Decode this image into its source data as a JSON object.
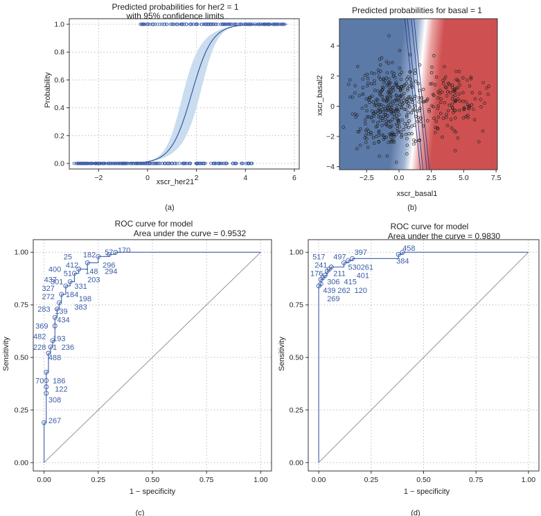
{
  "chart_data": [
    {
      "id": "a",
      "type": "line",
      "panel_label": "(a)",
      "title": "Predicted probabilities for her2 = 1",
      "subtitle": "with 95% confidence limits",
      "xlabel": "xscr_her21",
      "ylabel": "Probability",
      "xlim": [
        -3.2,
        6.2
      ],
      "ylim": [
        -0.04,
        1.04
      ],
      "xticks": [
        -2,
        0,
        2,
        4,
        6
      ],
      "yticks": [
        0.0,
        0.2,
        0.4,
        0.6,
        0.8,
        1.0
      ],
      "xtick_labels": [
        "−2",
        "0",
        "2",
        "4",
        "6"
      ],
      "ytick_labels": [
        "0.0",
        "0.2",
        "0.4",
        "0.6",
        "0.8",
        "1.0"
      ],
      "grid": true,
      "colors": {
        "line": "#2f4f8f",
        "band": "#c9dcf0",
        "points": "#3a5ca8"
      },
      "logistic": {
        "midpoint": 1.8,
        "slope": 2.4,
        "band_halfwidth": 0.12
      },
      "observed_zero_x": [
        -3.0,
        -2.8,
        -2.5,
        -2.3,
        -2.1,
        -1.9,
        -1.8,
        -1.6,
        -1.5,
        -1.3,
        -1.2,
        -1.1,
        -1.0,
        -0.9,
        -0.8,
        -0.7,
        -0.6,
        -0.5,
        -0.4,
        -0.3,
        -0.2,
        -0.1,
        0.0,
        0.1,
        0.2,
        0.3,
        0.4,
        0.5,
        0.6,
        0.7,
        0.8,
        0.9,
        1.0,
        1.1,
        1.3,
        1.5,
        1.7,
        2.0,
        2.3,
        2.7,
        3.2,
        3.6,
        4.1
      ],
      "observed_one_x": [
        -0.2,
        0.1,
        0.4,
        0.7,
        1.0,
        1.2,
        1.4,
        1.6,
        1.8,
        2.0,
        2.2,
        2.4,
        2.6,
        2.8,
        3.0,
        3.2,
        3.4,
        3.6,
        3.8,
        4.0,
        4.2,
        4.4,
        4.6,
        4.8,
        5.0,
        5.2,
        5.6
      ]
    },
    {
      "id": "b",
      "type": "heatmap",
      "panel_label": "(b)",
      "title": "Predicted probabilities for basal = 1",
      "xlabel": "xscr_basal1",
      "ylabel": "xscr_basal2",
      "xlim": [
        -4.6,
        7.6
      ],
      "ylim": [
        -4.2,
        5.8
      ],
      "xticks": [
        -2.5,
        0.0,
        2.5,
        5.0,
        7.5
      ],
      "yticks": [
        -4,
        -2,
        0,
        2,
        4
      ],
      "xtick_labels": [
        "−2.5",
        "0.0",
        "2.5",
        "5.0",
        "7.5"
      ],
      "ytick_labels": [
        "−4",
        "−2",
        "0",
        "2",
        "4"
      ],
      "colors": {
        "low": "#5c7aa8",
        "high": "#cf5050",
        "mid": "#ffffff",
        "contour": "#1f3f8f",
        "points": "#222222"
      },
      "boundary": {
        "x_at_y0": 1.5,
        "x_per_y": -0.12
      },
      "basal0_cluster": {
        "center": [
          -0.5,
          0.0
        ],
        "spread": [
          1.6,
          1.6
        ],
        "n": 380
      },
      "basal1_cluster": {
        "center": [
          4.4,
          0.3
        ],
        "spread": [
          1.3,
          1.3
        ],
        "n": 120
      }
    },
    {
      "id": "c",
      "type": "line",
      "panel_label": "(c)",
      "title": "ROC curve for model",
      "subtitle": "Area under the curve = 0.9532",
      "xlabel": "1 − specificity",
      "ylabel": "Sensitivity",
      "xlim": [
        -0.05,
        1.05
      ],
      "ylim": [
        -0.04,
        1.06
      ],
      "xticks": [
        0.0,
        0.25,
        0.5,
        0.75,
        1.0
      ],
      "yticks": [
        0.0,
        0.25,
        0.5,
        0.75,
        1.0
      ],
      "xtick_labels": [
        "0.00",
        "0.25",
        "0.50",
        "0.75",
        "1.00"
      ],
      "ytick_labels": [
        "0.00",
        "0.25",
        "0.50",
        "0.75",
        "1.00"
      ],
      "grid": true,
      "colors": {
        "curve": "#3a5ca8",
        "diagonal": "#888888",
        "labels": "#3a5ca8"
      },
      "roc_points": [
        [
          0.0,
          0.0
        ],
        [
          0.0,
          0.19
        ],
        [
          0.01,
          0.33
        ],
        [
          0.01,
          0.36
        ],
        [
          0.01,
          0.39
        ],
        [
          0.01,
          0.43
        ],
        [
          0.02,
          0.52
        ],
        [
          0.03,
          0.55
        ],
        [
          0.04,
          0.58
        ],
        [
          0.05,
          0.65
        ],
        [
          0.05,
          0.69
        ],
        [
          0.06,
          0.73
        ],
        [
          0.07,
          0.76
        ],
        [
          0.08,
          0.8
        ],
        [
          0.1,
          0.84
        ],
        [
          0.12,
          0.86
        ],
        [
          0.14,
          0.9
        ],
        [
          0.16,
          0.92
        ],
        [
          0.2,
          0.95
        ],
        [
          0.25,
          0.98
        ],
        [
          0.3,
          0.99
        ],
        [
          0.33,
          1.0
        ],
        [
          1.0,
          1.0
        ]
      ],
      "observation_labels": [
        {
          "text": "267",
          "x": 0.02,
          "y": 0.2
        },
        {
          "text": "308",
          "x": 0.02,
          "y": 0.3
        },
        {
          "text": "122",
          "x": 0.05,
          "y": 0.35
        },
        {
          "text": "186",
          "x": 0.04,
          "y": 0.39
        },
        {
          "text": "70",
          "x": -0.04,
          "y": 0.39
        },
        {
          "text": "488",
          "x": 0.02,
          "y": 0.5
        },
        {
          "text": "228",
          "x": -0.05,
          "y": 0.55
        },
        {
          "text": "1",
          "x": 0.04,
          "y": 0.55
        },
        {
          "text": "236",
          "x": 0.08,
          "y": 0.55
        },
        {
          "text": "193",
          "x": 0.04,
          "y": 0.59
        },
        {
          "text": "482",
          "x": -0.05,
          "y": 0.6
        },
        {
          "text": "369",
          "x": -0.04,
          "y": 0.65
        },
        {
          "text": "434",
          "x": 0.06,
          "y": 0.68
        },
        {
          "text": "139",
          "x": 0.05,
          "y": 0.72
        },
        {
          "text": "283",
          "x": -0.03,
          "y": 0.73
        },
        {
          "text": "383",
          "x": 0.14,
          "y": 0.74
        },
        {
          "text": "272",
          "x": -0.01,
          "y": 0.79
        },
        {
          "text": "198",
          "x": 0.16,
          "y": 0.78
        },
        {
          "text": "184",
          "x": 0.1,
          "y": 0.8
        },
        {
          "text": "327",
          "x": -0.01,
          "y": 0.83
        },
        {
          "text": "331",
          "x": 0.14,
          "y": 0.84
        },
        {
          "text": "301",
          "x": 0.03,
          "y": 0.86
        },
        {
          "text": "203",
          "x": 0.2,
          "y": 0.87
        },
        {
          "text": "437",
          "x": 0.0,
          "y": 0.87
        },
        {
          "text": "51",
          "x": 0.09,
          "y": 0.9
        },
        {
          "text": "148",
          "x": 0.19,
          "y": 0.91
        },
        {
          "text": "294",
          "x": 0.28,
          "y": 0.91
        },
        {
          "text": "400",
          "x": 0.02,
          "y": 0.92
        },
        {
          "text": "412",
          "x": 0.1,
          "y": 0.94
        },
        {
          "text": "296",
          "x": 0.27,
          "y": 0.94
        },
        {
          "text": "25",
          "x": 0.09,
          "y": 0.98
        },
        {
          "text": "182",
          "x": 0.18,
          "y": 0.99
        },
        {
          "text": "57",
          "x": 0.28,
          "y": 1.0
        },
        {
          "text": "170",
          "x": 0.34,
          "y": 1.01
        }
      ]
    },
    {
      "id": "d",
      "type": "line",
      "panel_label": "(d)",
      "title": "ROC curve for model",
      "subtitle": "Area under the curve = 0.9830",
      "xlabel": "1 − specificity",
      "ylabel": "Sensitivity",
      "xlim": [
        -0.05,
        1.05
      ],
      "ylim": [
        -0.04,
        1.06
      ],
      "xticks": [
        0.0,
        0.25,
        0.5,
        0.75,
        1.0
      ],
      "yticks": [
        0.0,
        0.25,
        0.5,
        0.75,
        1.0
      ],
      "xtick_labels": [
        "0.00",
        "0.25",
        "0.50",
        "0.75",
        "1.00"
      ],
      "ytick_labels": [
        "0.00",
        "0.25",
        "0.50",
        "0.75",
        "1.00"
      ],
      "grid": true,
      "colors": {
        "curve": "#3a5ca8",
        "diagonal": "#888888",
        "labels": "#3a5ca8"
      },
      "roc_points": [
        [
          0.0,
          0.0
        ],
        [
          0.0,
          0.84
        ],
        [
          0.01,
          0.85
        ],
        [
          0.01,
          0.87
        ],
        [
          0.02,
          0.88
        ],
        [
          0.03,
          0.89
        ],
        [
          0.04,
          0.91
        ],
        [
          0.05,
          0.92
        ],
        [
          0.06,
          0.93
        ],
        [
          0.12,
          0.95
        ],
        [
          0.14,
          0.96
        ],
        [
          0.16,
          0.97
        ],
        [
          0.38,
          0.99
        ],
        [
          0.4,
          1.0
        ],
        [
          1.0,
          1.0
        ]
      ],
      "observation_labels": [
        {
          "text": "269",
          "x": 0.04,
          "y": 0.78
        },
        {
          "text": "439",
          "x": 0.02,
          "y": 0.82
        },
        {
          "text": "262",
          "x": 0.09,
          "y": 0.82
        },
        {
          "text": "120",
          "x": 0.17,
          "y": 0.82
        },
        {
          "text": "306",
          "x": 0.04,
          "y": 0.86
        },
        {
          "text": "415",
          "x": 0.12,
          "y": 0.86
        },
        {
          "text": "176",
          "x": -0.04,
          "y": 0.9
        },
        {
          "text": "211",
          "x": 0.07,
          "y": 0.9
        },
        {
          "text": "401",
          "x": 0.18,
          "y": 0.89
        },
        {
          "text": "241",
          "x": -0.02,
          "y": 0.94
        },
        {
          "text": "530",
          "x": 0.14,
          "y": 0.93
        },
        {
          "text": "261",
          "x": 0.2,
          "y": 0.93
        },
        {
          "text": "517",
          "x": -0.03,
          "y": 0.98
        },
        {
          "text": "497",
          "x": 0.07,
          "y": 0.98
        },
        {
          "text": "397",
          "x": 0.17,
          "y": 1.0
        },
        {
          "text": "384",
          "x": 0.37,
          "y": 0.96
        },
        {
          "text": "458",
          "x": 0.4,
          "y": 1.02
        }
      ]
    }
  ]
}
